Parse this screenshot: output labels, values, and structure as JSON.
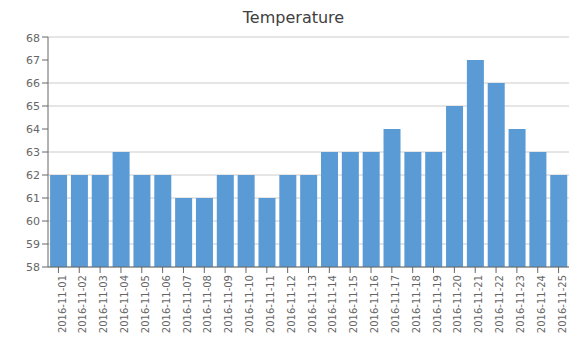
{
  "chart_data": {
    "type": "bar",
    "title": "Temperature",
    "categories": [
      "2016-11-01",
      "2016-11-02",
      "2016-11-03",
      "2016-11-04",
      "2016-11-05",
      "2016-11-06",
      "2016-11-07",
      "2016-11-08",
      "2016-11-09",
      "2016-11-10",
      "2016-11-11",
      "2016-11-12",
      "2016-11-13",
      "2016-11-14",
      "2016-11-15",
      "2016-11-16",
      "2016-11-17",
      "2016-11-18",
      "2016-11-19",
      "2016-11-20",
      "2016-11-21",
      "2016-11-22",
      "2016-11-23",
      "2016-11-24",
      "2016-11-25"
    ],
    "values": [
      62,
      62,
      62,
      63,
      62,
      62,
      61,
      61,
      62,
      62,
      61,
      62,
      62,
      63,
      63,
      63,
      64,
      63,
      63,
      65,
      67,
      66,
      64,
      63,
      62
    ],
    "color": "#5b9bd5",
    "ylim": [
      58,
      68
    ],
    "yticks": [
      58,
      59,
      60,
      61,
      62,
      63,
      64,
      65,
      66,
      67,
      68
    ],
    "grid": true
  }
}
